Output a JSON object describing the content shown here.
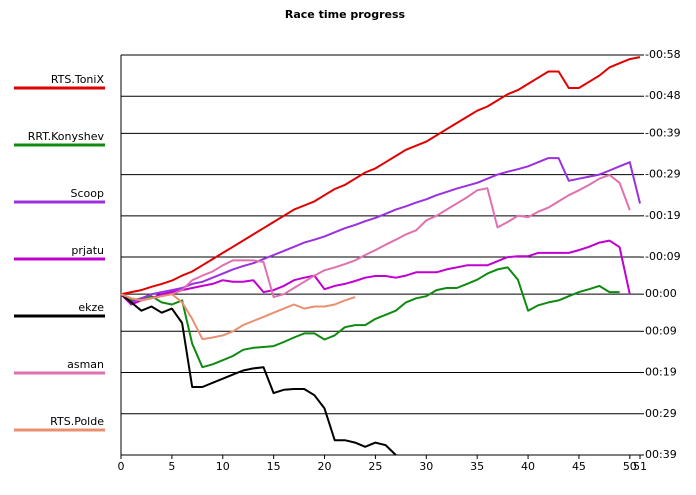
{
  "chart_data": {
    "type": "line",
    "title": "Race time progress",
    "x": [
      0,
      1,
      2,
      3,
      4,
      5,
      6,
      7,
      8,
      9,
      10,
      11,
      12,
      13,
      14,
      15,
      16,
      17,
      18,
      19,
      20,
      21,
      22,
      23,
      24,
      25,
      26,
      27,
      28,
      29,
      30,
      31,
      32,
      33,
      34,
      35,
      36,
      37,
      38,
      39,
      40,
      41,
      42,
      43,
      44,
      45,
      46,
      47,
      48,
      49,
      50,
      51
    ],
    "xlim": [
      0,
      51
    ],
    "xticks": [
      0,
      5,
      10,
      15,
      20,
      25,
      30,
      35,
      40,
      45,
      50,
      51
    ],
    "ylim": [
      -58,
      39
    ],
    "y_inverted": true,
    "yticks": [
      {
        "value": -58,
        "label": "-00:58"
      },
      {
        "value": -48,
        "label": "-00:48"
      },
      {
        "value": -39,
        "label": "-00:39"
      },
      {
        "value": -29,
        "label": "-00:29"
      },
      {
        "value": -19,
        "label": "-00:19"
      },
      {
        "value": -9,
        "label": "-00:09"
      },
      {
        "value": 0,
        "label": "00:00"
      },
      {
        "value": 9,
        "label": "00:09"
      },
      {
        "value": 19,
        "label": "00:19"
      },
      {
        "value": 29,
        "label": "00:29"
      },
      {
        "value": 39,
        "label": "00:39"
      }
    ],
    "grid": true,
    "legend": "left",
    "series": [
      {
        "name": "RTS.ToniX",
        "color": "#e00000",
        "values": [
          0,
          -0.5,
          -1,
          -1.8,
          -2.5,
          -3.3,
          -4.5,
          -5.5,
          -7,
          -8.5,
          -10,
          -11.5,
          -13,
          -14.5,
          -16,
          -17.5,
          -19,
          -20.5,
          -21.5,
          -22.5,
          -24,
          -25.5,
          -26.5,
          -28,
          -29.5,
          -30.5,
          -32,
          -33.5,
          -35,
          -36,
          -37,
          -38.5,
          -40,
          -41.5,
          -43,
          -44.5,
          -45.5,
          -47,
          -48.5,
          -49.5,
          -51,
          -52.5,
          -54,
          -54,
          -50,
          -50,
          -51.5,
          -53,
          -55,
          -56,
          -57,
          -57.5
        ]
      },
      {
        "name": "RRT.Konyshev",
        "color": "#108a10",
        "values": [
          0,
          1.5,
          1,
          0.5,
          2,
          2.5,
          1.5,
          12,
          17.7,
          17,
          16,
          15,
          13.5,
          13,
          12.8,
          12.6,
          11.6,
          10.5,
          9.5,
          9.5,
          11,
          10,
          8,
          7.5,
          7.5,
          6,
          5,
          4,
          2,
          1,
          0.5,
          -1,
          -1.5,
          -1.5,
          -2.5,
          -3.5,
          -5,
          -6,
          -6.5,
          -3.5,
          4,
          2.7,
          2,
          1.5,
          0.5,
          -0.5,
          -1.2,
          -2,
          -0.5,
          -0.5,
          null,
          null
        ]
      },
      {
        "name": "Scoop",
        "color": "#9a30e0",
        "values": [
          0,
          2,
          1,
          0,
          -0.5,
          -1,
          -1.5,
          -2.5,
          -3,
          -4,
          -5,
          -6,
          -6.8,
          -7.5,
          -8.5,
          -9.5,
          -10.5,
          -11.5,
          -12.5,
          -13.2,
          -14,
          -15,
          -16,
          -16.8,
          -17.7,
          -18.5,
          -19.5,
          -20.5,
          -21.3,
          -22.2,
          -23,
          -24,
          -24.8,
          -25.6,
          -26.3,
          -27,
          -28,
          -29,
          -29.7,
          -30.3,
          -31,
          -32,
          -33,
          -33,
          -27.5,
          -28,
          -28.5,
          -29,
          -30,
          -31,
          -32,
          -22
        ]
      },
      {
        "name": "prjatu",
        "color": "#c000d0",
        "values": [
          0,
          2.5,
          1.5,
          1,
          0,
          -0.5,
          -1,
          -1.5,
          -2,
          -2.5,
          -3.4,
          -3,
          -3,
          -3.4,
          -0.5,
          -1,
          -2,
          -3.4,
          -4,
          -4.5,
          -1.2,
          -2,
          -2.5,
          -3.2,
          -4,
          -4.4,
          -4.4,
          -4,
          -4.5,
          -5.3,
          -5.3,
          -5.3,
          -6,
          -6.5,
          -7,
          -7,
          -7,
          -8,
          -9,
          -9.2,
          -9.2,
          -10,
          -10,
          -10,
          -10,
          -10.7,
          -11.5,
          -12.5,
          -13,
          -11.4,
          0,
          null
        ]
      },
      {
        "name": "ekze",
        "color": "#000000",
        "values": [
          0,
          2,
          4,
          3,
          4.5,
          3.5,
          7,
          22.5,
          22.5,
          21.5,
          20.5,
          19.5,
          18.5,
          18,
          17.7,
          24,
          23.2,
          23,
          23,
          24.5,
          27.7,
          35.4,
          35.4,
          36,
          37,
          36,
          36.6,
          39,
          null,
          null,
          null,
          null,
          null,
          null,
          null,
          null,
          null,
          null,
          null,
          null,
          null,
          null,
          null,
          null,
          null,
          null,
          null,
          null,
          null,
          null,
          null,
          null
        ]
      },
      {
        "name": "asman",
        "color": "#e070b0",
        "values": [
          0,
          1,
          1.5,
          1,
          0.5,
          0,
          -1,
          -3.4,
          -4.5,
          -5.5,
          -7,
          -8.2,
          -8.2,
          -8.2,
          -7.8,
          0.7,
          0,
          -1.5,
          -3,
          -4.5,
          -5.8,
          -6.5,
          -7.3,
          -8.2,
          -9.5,
          -10.7,
          -12,
          -13.2,
          -14.5,
          -15.5,
          -17.9,
          -19,
          -20.5,
          -22,
          -23.5,
          -25.2,
          -25.7,
          -16.2,
          -17.5,
          -19,
          -18.7,
          -20,
          -21,
          -22.5,
          -24,
          -25.2,
          -26.5,
          -28,
          -28.9,
          -27,
          -20.4,
          null
        ]
      },
      {
        "name": "RTS.Polde",
        "color": "#e89070",
        "values": [
          0,
          1,
          1.5,
          1,
          0.5,
          0,
          2,
          6,
          10.9,
          10.5,
          10,
          9,
          7.5,
          6.5,
          5.5,
          4.5,
          3.5,
          2.5,
          3.5,
          3,
          3,
          2.5,
          1.5,
          0.7,
          null,
          null,
          null,
          null,
          null,
          null,
          null,
          null,
          null,
          null,
          null,
          null,
          null,
          null,
          null,
          null,
          null,
          null,
          null,
          null,
          null,
          null,
          null,
          null,
          null,
          null,
          null,
          null
        ]
      }
    ]
  }
}
